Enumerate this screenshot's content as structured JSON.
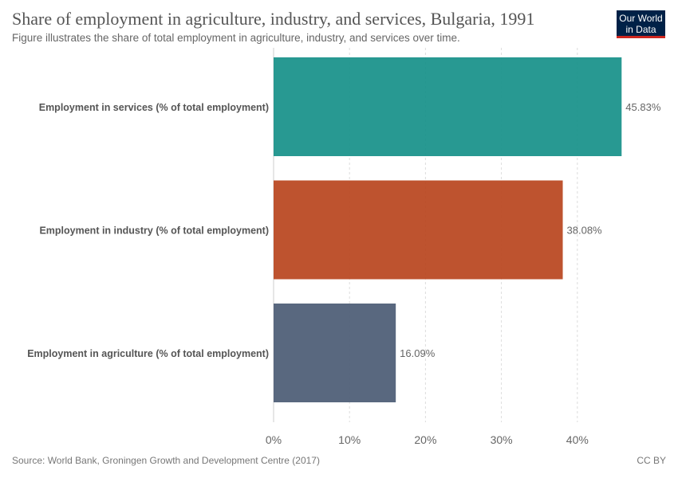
{
  "header": {
    "title": "Share of employment in agriculture, industry, and services, Bulgaria, 1991",
    "subtitle": "Figure illustrates the share of total employment in agriculture, industry, and services over time."
  },
  "logo": {
    "line1": "Our World",
    "line2": "in Data"
  },
  "footer": {
    "source": "Source: World Bank, Groningen Growth and Development Centre (2017)",
    "license": "CC BY"
  },
  "chart_data": {
    "type": "bar",
    "orientation": "horizontal",
    "categories": [
      "Employment in services (% of total employment)",
      "Employment in industry (% of total employment)",
      "Employment in agriculture (% of total employment)"
    ],
    "values": [
      45.83,
      38.08,
      16.09
    ],
    "value_labels": [
      "45.83%",
      "38.08%",
      "16.09%"
    ],
    "colors": [
      "#18918a",
      "#b9461f",
      "#4c5d75"
    ],
    "xlim": [
      0,
      46
    ],
    "xticks": [
      0,
      10,
      20,
      30,
      40
    ],
    "xtick_labels": [
      "0%",
      "10%",
      "20%",
      "30%",
      "40%"
    ],
    "grid": "vertical-dashed"
  }
}
